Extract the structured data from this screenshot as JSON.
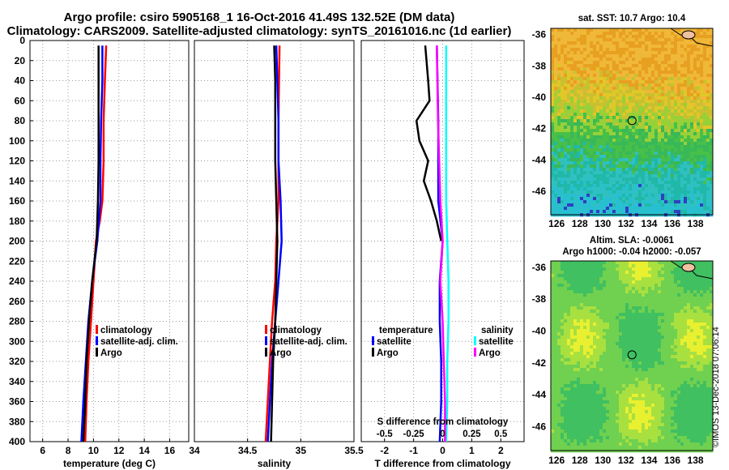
{
  "header": {
    "line1": "Argo profile: csiro 5905168_1 16-Oct-2016 41.49S 132.52E (DM data)",
    "line2": "Climatology: CARS2009. Satellite-adjusted climatology: synTS_20161016.nc (1d earlier)"
  },
  "maps": {
    "sst_title": "sat. SST: 10.7 Argo: 10.4",
    "sla_title1": "Altim. SLA: -0.0061",
    "sla_title2": "Argo h1000: -0.04 h2000: -0.057",
    "lat_ticks": [
      "-36",
      "-38",
      "-40",
      "-42",
      "-44",
      "-46"
    ],
    "lon_ticks": [
      "126",
      "128",
      "130",
      "132",
      "134",
      "136",
      "138"
    ],
    "argo_position": {
      "lat": -41.49,
      "lon": 132.52
    }
  },
  "watermark": "©IMOS 13-Dec-2018 07:06:14",
  "colors": {
    "climatology": "#ff0000",
    "satellite": "#0000ff",
    "argo": "#000000",
    "s_satellite": "#00ffff",
    "s_argo": "#ff00ff"
  },
  "chart_data": [
    {
      "type": "line",
      "panel": "temperature",
      "xlabel": "temperature (deg C)",
      "ylabel": "",
      "xlim": [
        5,
        17.5
      ],
      "ylim": [
        400,
        0
      ],
      "xticks": [
        "6",
        "8",
        "10",
        "12",
        "14",
        "16"
      ],
      "yticks": [
        "0",
        "20",
        "40",
        "60",
        "80",
        "100",
        "120",
        "140",
        "160",
        "180",
        "200",
        "220",
        "240",
        "260",
        "280",
        "300",
        "320",
        "340",
        "360",
        "380",
        "400"
      ],
      "legend": {
        "position": "center-right",
        "entries": [
          "climatology",
          "satellite-adj. clim.",
          "Argo"
        ]
      },
      "series": [
        {
          "name": "climatology",
          "color": "#ff0000",
          "depth": [
            5,
            40,
            80,
            120,
            160,
            180,
            200,
            240,
            280,
            320,
            360,
            400
          ],
          "values": [
            11.0,
            10.9,
            10.8,
            10.8,
            10.7,
            10.5,
            10.2,
            10.0,
            9.8,
            9.6,
            9.45,
            9.35
          ]
        },
        {
          "name": "satellite-adj. clim.",
          "color": "#0000ff",
          "depth": [
            5,
            40,
            80,
            120,
            160,
            200,
            240,
            280,
            320,
            360,
            400
          ],
          "values": [
            10.7,
            10.7,
            10.6,
            10.55,
            10.55,
            10.3,
            9.9,
            9.6,
            9.4,
            9.2,
            9.05
          ]
        },
        {
          "name": "Argo",
          "color": "#000000",
          "depth": [
            5,
            40,
            80,
            120,
            160,
            200,
            240,
            280,
            320,
            360,
            400
          ],
          "values": [
            10.4,
            10.4,
            10.4,
            10.4,
            10.35,
            10.25,
            9.9,
            9.65,
            9.45,
            9.35,
            9.2
          ]
        }
      ]
    },
    {
      "type": "line",
      "panel": "salinity",
      "xlabel": "salinity",
      "ylabel": "",
      "xlim": [
        34,
        35.5
      ],
      "ylim": [
        400,
        0
      ],
      "xticks": [
        "34",
        "34.5",
        "35",
        "35.5"
      ],
      "legend": {
        "position": "center-right",
        "entries": [
          "climatology",
          "satellite-adj. clim.",
          "Argo"
        ]
      },
      "series": [
        {
          "name": "climatology",
          "color": "#ff0000",
          "depth": [
            5,
            80,
            160,
            200,
            240,
            280,
            320,
            360,
            400
          ],
          "values": [
            34.8,
            34.79,
            34.79,
            34.77,
            34.76,
            34.73,
            34.71,
            34.69,
            34.67
          ]
        },
        {
          "name": "satellite-adj. clim.",
          "color": "#0000ff",
          "depth": [
            5,
            40,
            80,
            120,
            160,
            200,
            240,
            280,
            320,
            360,
            400
          ],
          "values": [
            34.77,
            34.78,
            34.79,
            34.79,
            34.81,
            34.82,
            34.79,
            34.76,
            34.73,
            34.71,
            34.69
          ]
        },
        {
          "name": "Argo",
          "color": "#000000",
          "depth": [
            5,
            40,
            80,
            120,
            160,
            200,
            240,
            280,
            320,
            360,
            400
          ],
          "values": [
            34.75,
            34.76,
            34.76,
            34.76,
            34.77,
            34.78,
            34.77,
            34.76,
            34.74,
            34.73,
            34.72
          ]
        }
      ]
    },
    {
      "type": "line",
      "panel": "difference",
      "xlabel": "T difference from climatology",
      "top_axis_label": "S difference from climatology",
      "xlim": [
        -2.8,
        2.8
      ],
      "ylim": [
        400,
        0
      ],
      "xticks": [
        "-2",
        "-1",
        "0",
        "1",
        "2"
      ],
      "s_xlim": [
        -0.7,
        0.7
      ],
      "s_xticks": [
        "-0.5",
        "-0.25",
        "0",
        "0.25",
        "0.5"
      ],
      "legend": [
        {
          "position": "center-left",
          "title": "temperature",
          "entries": [
            "satellite",
            "Argo"
          ]
        },
        {
          "position": "center-right",
          "title": "salinity",
          "entries": [
            "satellite",
            "Argo"
          ]
        }
      ],
      "series": [
        {
          "name": "temperature satellite",
          "color": "#0000ff",
          "unit": "T",
          "depth": [
            5,
            80,
            160,
            200,
            240,
            280,
            320,
            360,
            400
          ],
          "values": [
            -0.2,
            -0.15,
            -0.15,
            0.0,
            -0.1,
            -0.1,
            -0.05,
            -0.05,
            -0.1
          ]
        },
        {
          "name": "temperature Argo",
          "color": "#000000",
          "unit": "T",
          "depth": [
            5,
            40,
            60,
            80,
            100,
            120,
            140,
            160,
            180,
            200
          ],
          "values": [
            -0.6,
            -0.5,
            -0.45,
            -0.9,
            -0.8,
            -0.5,
            -0.65,
            -0.4,
            -0.2,
            -0.05
          ]
        },
        {
          "name": "salinity satellite",
          "color": "#00ffff",
          "unit": "S",
          "depth": [
            5,
            80,
            160,
            240,
            280,
            320,
            360,
            400
          ],
          "values": [
            0.03,
            0.03,
            0.03,
            0.05,
            0.05,
            0.04,
            0.04,
            0.03
          ]
        },
        {
          "name": "salinity Argo",
          "color": "#ff00ff",
          "unit": "S",
          "depth": [
            5,
            80,
            160,
            200,
            240,
            280,
            320,
            360,
            400
          ],
          "values": [
            -0.05,
            -0.04,
            -0.02,
            0.0,
            -0.02,
            0.0,
            0.01,
            0.02,
            0.02
          ]
        }
      ]
    }
  ]
}
